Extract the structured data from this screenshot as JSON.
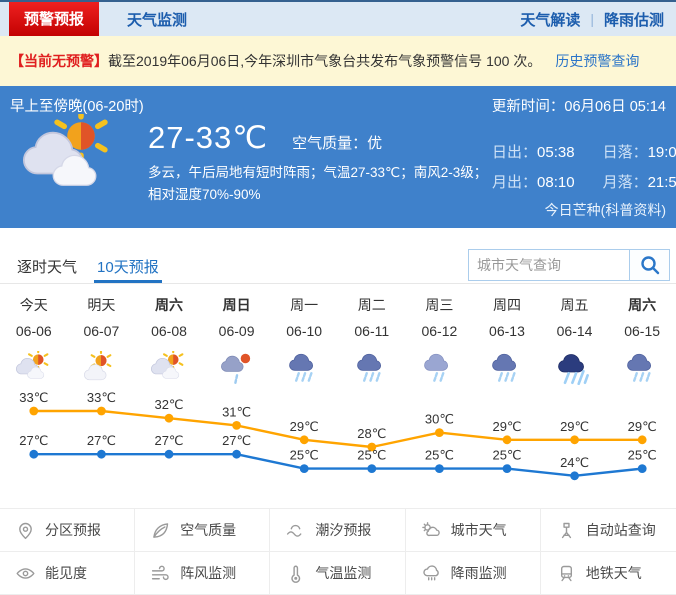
{
  "topnav": {
    "tabs": [
      {
        "label": "预警预报",
        "active": true
      },
      {
        "label": "天气监测",
        "active": false
      }
    ],
    "links": [
      "天气解读",
      "降雨估测"
    ]
  },
  "alert": {
    "badge": "【当前无预警】",
    "text": "截至2019年06月06日,今年深圳市气象台共发布气象预警信号 100 次。",
    "link": "历史预警查询"
  },
  "current": {
    "period": "早上至傍晚(06-20时)",
    "update_label": "更新时间：",
    "update_time": "06月06日 05:14",
    "temp_range": "27-33℃",
    "air_quality_label": "空气质量：",
    "air_quality_value": "优",
    "description": "多云，午后局地有短时阵雨；气温27-33℃；南风2-3级；相对湿度70%-90%",
    "weather_icon": "sun-clouds-icon",
    "astro": [
      {
        "label": "日出：",
        "value": "05:38"
      },
      {
        "label": "日落：",
        "value": "19:06"
      },
      {
        "label": "月出：",
        "value": "08:10"
      },
      {
        "label": "月落：",
        "value": "21:58"
      }
    ],
    "solar_term_link": "今日芒种(科普资料)"
  },
  "tabs": {
    "items": [
      {
        "label": "逐时天气",
        "active": false
      },
      {
        "label": "10天预报",
        "active": true
      }
    ]
  },
  "search": {
    "placeholder": "城市天气查询",
    "icon": "search-icon"
  },
  "forecast": {
    "days": [
      {
        "label": "今天",
        "date": "06-06",
        "icon": "sun-clouds-icon",
        "bold": false
      },
      {
        "label": "明天",
        "date": "06-07",
        "icon": "sun-cloud-icon",
        "bold": false
      },
      {
        "label": "周六",
        "date": "06-08",
        "icon": "sun-clouds-icon",
        "bold": true
      },
      {
        "label": "周日",
        "date": "06-09",
        "icon": "sun-shower-icon",
        "bold": true
      },
      {
        "label": "周一",
        "date": "06-10",
        "icon": "rain-icon",
        "bold": false
      },
      {
        "label": "周二",
        "date": "06-11",
        "icon": "rain-icon",
        "bold": false
      },
      {
        "label": "周三",
        "date": "06-12",
        "icon": "rain-light-icon",
        "bold": false
      },
      {
        "label": "周四",
        "date": "06-13",
        "icon": "rain-icon",
        "bold": false
      },
      {
        "label": "周五",
        "date": "06-14",
        "icon": "storm-icon",
        "bold": false
      },
      {
        "label": "周六",
        "date": "06-15",
        "icon": "rain-icon",
        "bold": true
      }
    ]
  },
  "chart_data": {
    "type": "line",
    "x": [
      "06-06",
      "06-07",
      "06-08",
      "06-09",
      "06-10",
      "06-11",
      "06-12",
      "06-13",
      "06-14",
      "06-15"
    ],
    "series": [
      {
        "name": "最高气温",
        "color": "#FFA400",
        "values": [
          33,
          33,
          32,
          31,
          29,
          28,
          30,
          29,
          29,
          29
        ]
      },
      {
        "name": "最低气温",
        "color": "#1E78D2",
        "values": [
          27,
          27,
          27,
          27,
          25,
          25,
          25,
          25,
          24,
          25
        ]
      }
    ],
    "unit": "℃",
    "ylim": [
      23,
      35
    ],
    "grid": false,
    "legend": "none"
  },
  "quick_links": {
    "items": [
      {
        "label": "分区预报",
        "icon": "map-pin-icon"
      },
      {
        "label": "空气质量",
        "icon": "leaf-icon"
      },
      {
        "label": "潮汐预报",
        "icon": "tide-wave-icon"
      },
      {
        "label": "城市天气",
        "icon": "city-sun-cloud-icon"
      },
      {
        "label": "自动站查询",
        "icon": "weather-station-icon"
      },
      {
        "label": "能见度",
        "icon": "eye-icon"
      },
      {
        "label": "阵风监测",
        "icon": "wind-icon"
      },
      {
        "label": "气温监测",
        "icon": "thermometer-icon"
      },
      {
        "label": "降雨监测",
        "icon": "rain-cloud-icon"
      },
      {
        "label": "地铁天气",
        "icon": "train-icon"
      }
    ]
  },
  "colors": {
    "panel_blue": "#3f81cb",
    "alert_yellow": "#fdf7d5",
    "tab_red": "#d30505",
    "link_blue": "#2273c3",
    "high_series": "#FFA400",
    "low_series": "#1E78D2"
  }
}
